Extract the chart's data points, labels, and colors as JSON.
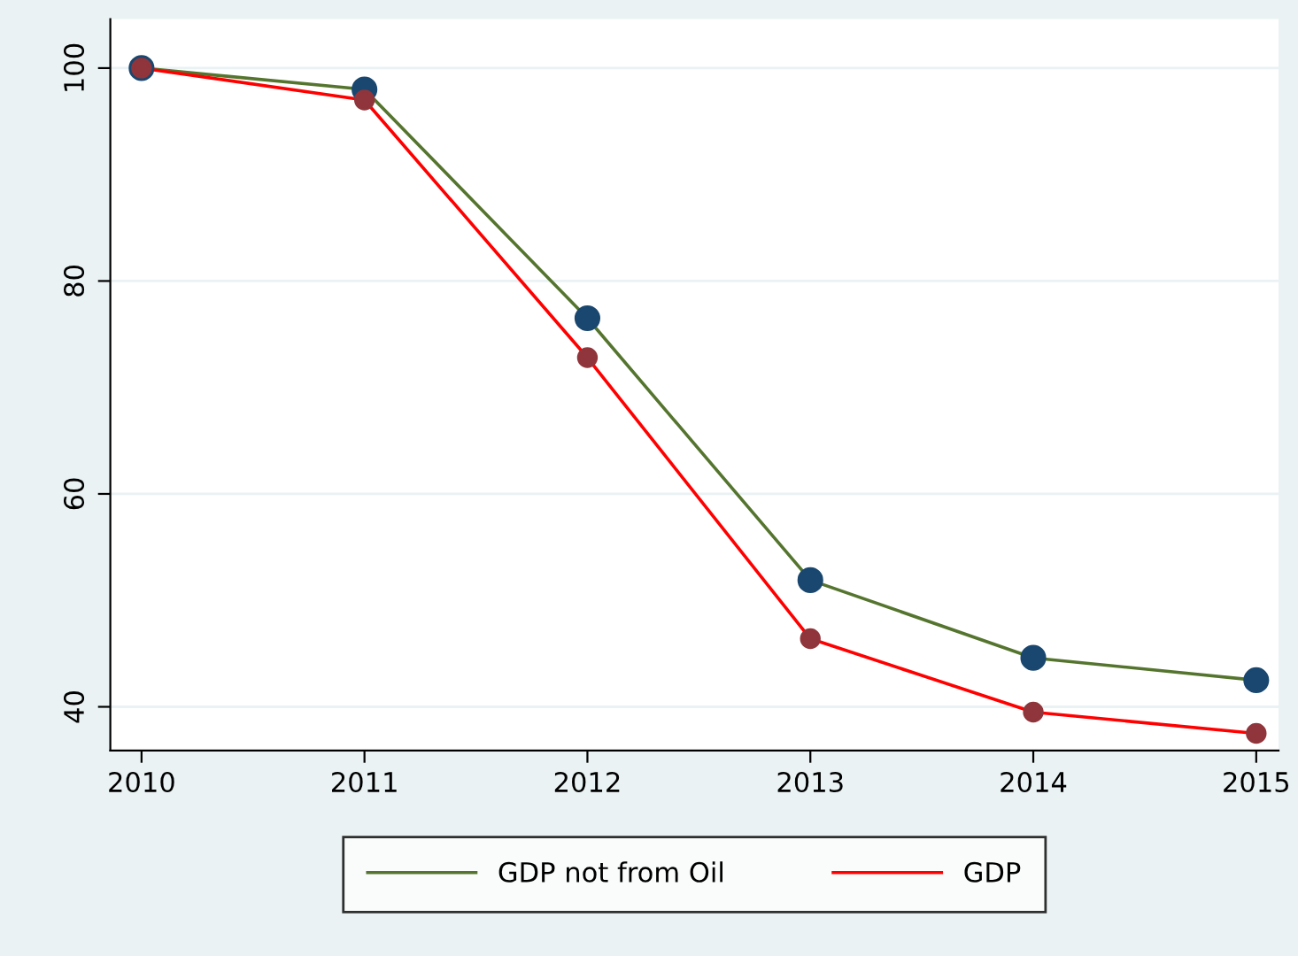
{
  "chart_data": {
    "type": "line",
    "x": [
      2010,
      2011,
      2012,
      2013,
      2014,
      2015
    ],
    "xlim": [
      2009.86,
      2015.1
    ],
    "xticks": [
      2010,
      2011,
      2012,
      2013,
      2014,
      2015
    ],
    "ylim": [
      35.9,
      104.6
    ],
    "yticks": [
      40,
      60,
      80,
      100
    ],
    "series": [
      {
        "name": "GDP not from Oil",
        "color": "#55752f",
        "colors": [
          "#1a476f",
          "#1a476f",
          "#1a476f",
          "#1a476f",
          "#1a476f",
          "#1a476f"
        ],
        "values": [
          100,
          98.0,
          76.5,
          51.9,
          44.6,
          42.5
        ]
      },
      {
        "name": "GDP",
        "color": "#ff0000",
        "colors": [
          "#90353b",
          "#90353b",
          "#90353b",
          "#90353b",
          "#90353b",
          "#90353b"
        ],
        "values": [
          100,
          97.0,
          72.8,
          46.4,
          39.5,
          37.5
        ]
      }
    ],
    "marker": "circle",
    "line_style": "solid",
    "grid": "y",
    "legend": "bottom"
  }
}
